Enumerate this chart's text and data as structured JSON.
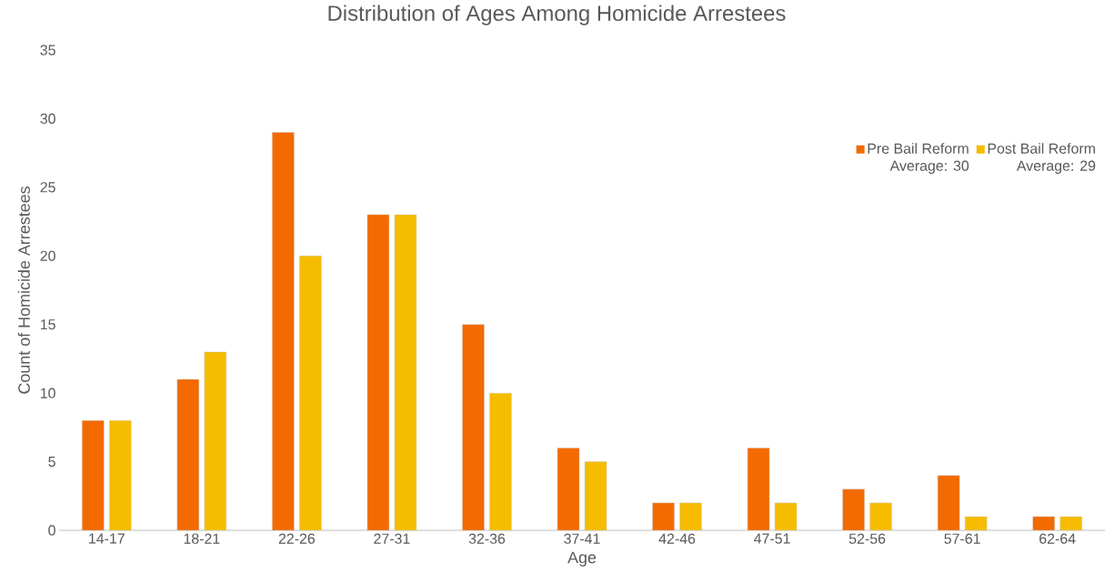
{
  "chart_data": {
    "type": "bar",
    "title": "Distribution of Ages Among Homicide Arrestees",
    "xlabel": "Age",
    "ylabel": "Count of Homicide Arrestees",
    "categories": [
      "14-17",
      "18-21",
      "22-26",
      "27-31",
      "32-36",
      "37-41",
      "42-46",
      "47-51",
      "52-56",
      "57-61",
      "62-64"
    ],
    "series": [
      {
        "name": "Pre Bail Reform",
        "color": "#f26a00",
        "values": [
          8,
          11,
          29,
          23,
          15,
          6,
          2,
          6,
          3,
          4,
          1
        ]
      },
      {
        "name": "Post Bail Reform",
        "color": "#f5bc00",
        "values": [
          8,
          13,
          20,
          23,
          10,
          5,
          2,
          2,
          2,
          1,
          1
        ]
      }
    ],
    "annotations": [
      "Average: 30",
      "Average: 29"
    ],
    "ylim": [
      0,
      35
    ],
    "yticks": [
      0,
      5,
      10,
      15,
      20,
      25,
      30,
      35
    ],
    "grid": false,
    "legend": "top right"
  }
}
